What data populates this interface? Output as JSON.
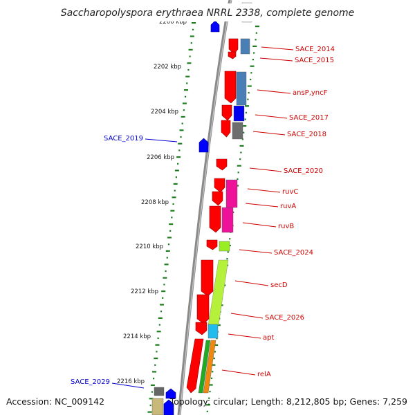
{
  "title": "Saccharopolyspora erythraea NRRL 2338, complete genome",
  "footer": {
    "accession": "Accession: NC_009142",
    "summary": "Topology: circular; Length: 8,212,805 bp; Genes: 7,259"
  },
  "colors": {
    "forward_strand": "#ff0000",
    "reverse_strand": "#0000ff",
    "label_forward": "#cc0000",
    "label_reverse": "#0000cc",
    "tick": "#1e7d1e",
    "backbone": "#8a8a8a"
  },
  "scale": {
    "unit": "kbp",
    "labels": [
      "2200 kbp",
      "2202 kbp",
      "2204 kbp",
      "2206 kbp",
      "2208 kbp",
      "2210 kbp",
      "2212 kbp",
      "2214 kbp",
      "2216 kbp"
    ]
  },
  "features": [
    {
      "label": "SACE_2014",
      "strand": "forward",
      "cog_color": "#4a7fb5"
    },
    {
      "label": "SACE_2015",
      "strand": "forward",
      "cog_color": ""
    },
    {
      "label": "ansP,yncF",
      "strand": "forward",
      "cog_color": "#4a7fb5"
    },
    {
      "label": "SACE_2017",
      "strand": "forward",
      "cog_color": "#0000ee"
    },
    {
      "label": "SACE_2018",
      "strand": "forward",
      "cog_color": "#6e6e6e"
    },
    {
      "label": "SACE_2019",
      "strand": "reverse",
      "cog_color": ""
    },
    {
      "label": "SACE_2020",
      "strand": "forward",
      "cog_color": ""
    },
    {
      "label": "ruvC",
      "strand": "forward",
      "cog_color": "#ee1199"
    },
    {
      "label": "ruvA",
      "strand": "forward",
      "cog_color": "#ee1199"
    },
    {
      "label": "ruvB",
      "strand": "forward",
      "cog_color": "#ee1199"
    },
    {
      "label": "SACE_2024",
      "strand": "forward",
      "cog_color": "#99ee22"
    },
    {
      "label": "secD",
      "strand": "forward",
      "cog_color": "#b5f03a"
    },
    {
      "label": "SACE_2026",
      "strand": "forward",
      "cog_color": "#b5f03a"
    },
    {
      "label": "apt",
      "strand": "forward",
      "cog_color": "#22bbee"
    },
    {
      "label": "relA",
      "strand": "forward",
      "cog_color": "#ee8811"
    },
    {
      "label": "SACE_2029",
      "strand": "reverse",
      "cog_color": "#c8b87a"
    }
  ]
}
